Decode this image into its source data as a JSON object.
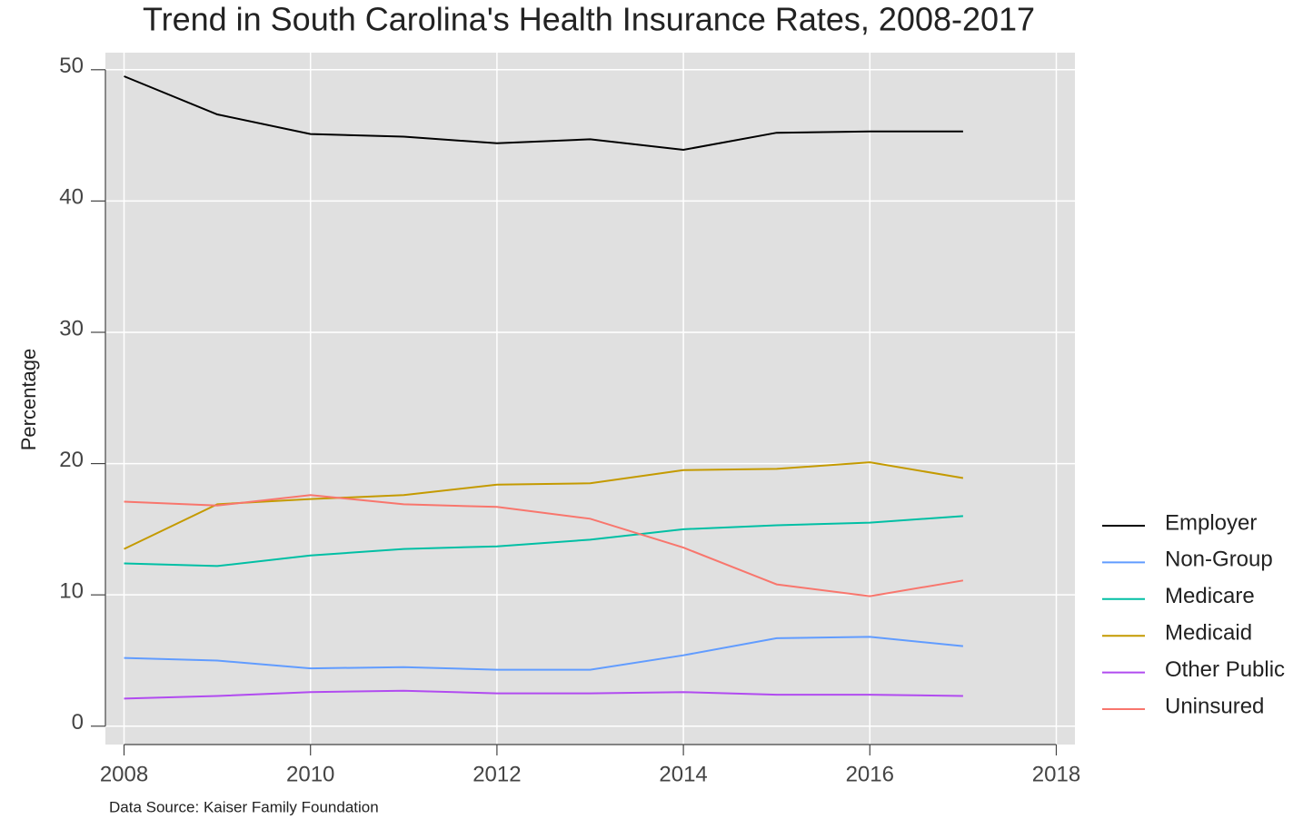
{
  "chart_data": {
    "type": "line",
    "title": "Trend in South Carolina's Health Insurance Rates, 2008-2017",
    "y_label": "Percentage",
    "caption": "Data Source: Kaiser Family Foundation",
    "x": [
      2008,
      2009,
      2010,
      2011,
      2012,
      2013,
      2014,
      2015,
      2016,
      2017
    ],
    "series": [
      {
        "name": "Employer",
        "color": "#000000",
        "values": [
          49.5,
          46.6,
          45.1,
          44.9,
          44.4,
          44.7,
          43.9,
          45.2,
          45.3,
          45.3
        ]
      },
      {
        "name": "Non-Group",
        "color": "#619CFF",
        "values": [
          5.2,
          5.0,
          4.4,
          4.5,
          4.3,
          4.3,
          5.4,
          6.7,
          6.8,
          6.1
        ]
      },
      {
        "name": "Medicare",
        "color": "#00BFA4",
        "values": [
          12.4,
          12.2,
          13.0,
          13.5,
          13.7,
          14.2,
          15.0,
          15.3,
          15.5,
          16.0
        ]
      },
      {
        "name": "Medicaid",
        "color": "#C49A00",
        "values": [
          13.5,
          16.9,
          17.3,
          17.6,
          18.4,
          18.5,
          19.5,
          19.6,
          20.1,
          18.9
        ]
      },
      {
        "name": "Other Public",
        "color": "#B14BF0",
        "values": [
          2.1,
          2.3,
          2.6,
          2.7,
          2.5,
          2.5,
          2.6,
          2.4,
          2.4,
          2.3
        ]
      },
      {
        "name": "Uninsured",
        "color": "#F8766D",
        "values": [
          17.1,
          16.8,
          17.6,
          16.9,
          16.7,
          15.8,
          13.6,
          10.8,
          9.9,
          11.1
        ]
      }
    ],
    "xlim": [
      2007.8,
      2018.2
    ],
    "xticks": [
      2008,
      2010,
      2012,
      2014,
      2016,
      2018
    ],
    "ylim": [
      -1.4,
      51.3
    ],
    "yticks": [
      0,
      10,
      20,
      30,
      40,
      50
    ],
    "grid": true,
    "legend": "right"
  }
}
